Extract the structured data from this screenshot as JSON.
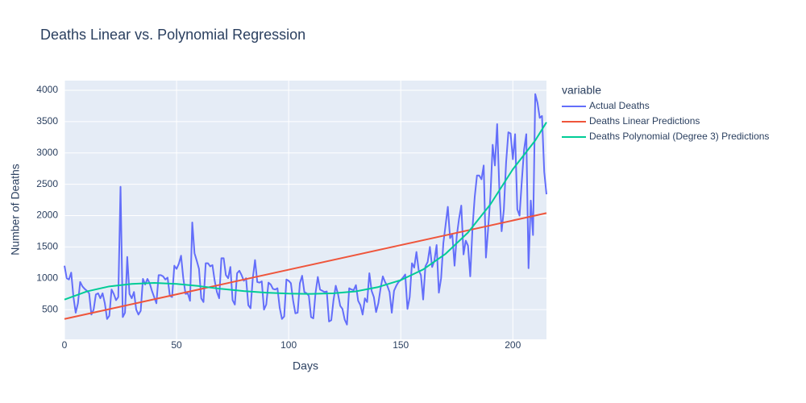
{
  "chart_data": {
    "type": "line",
    "title": "Deaths Linear vs. Polynomial Regression",
    "x_label": "Days",
    "y_label": "Number of Deaths",
    "legend_title": "variable",
    "xlim": [
      0,
      215
    ],
    "xticks": [
      0,
      50,
      100,
      150,
      200
    ],
    "ylim": [
      25,
      4155
    ],
    "yticks": [
      500,
      1000,
      1500,
      2000,
      2500,
      3000,
      3500,
      4000
    ],
    "grid": true,
    "series": [
      {
        "name": "Actual Deaths",
        "color": "#636efa",
        "x": [
          0,
          1,
          2,
          3,
          4,
          5,
          6,
          7,
          8,
          9,
          10,
          11,
          12,
          13,
          14,
          15,
          16,
          17,
          18,
          19,
          20,
          21,
          22,
          23,
          24,
          25,
          26,
          27,
          28,
          29,
          30,
          31,
          32,
          33,
          34,
          35,
          36,
          37,
          38,
          39,
          40,
          41,
          42,
          43,
          44,
          45,
          46,
          47,
          48,
          49,
          50,
          51,
          52,
          53,
          54,
          55,
          56,
          57,
          58,
          59,
          60,
          61,
          62,
          63,
          64,
          65,
          66,
          67,
          68,
          69,
          70,
          71,
          72,
          73,
          74,
          75,
          76,
          77,
          78,
          79,
          80,
          81,
          82,
          83,
          84,
          85,
          86,
          87,
          88,
          89,
          90,
          91,
          92,
          93,
          94,
          95,
          96,
          97,
          98,
          99,
          100,
          101,
          102,
          103,
          104,
          105,
          106,
          107,
          108,
          109,
          110,
          111,
          112,
          113,
          114,
          115,
          116,
          117,
          118,
          119,
          120,
          121,
          122,
          123,
          124,
          125,
          126,
          127,
          128,
          129,
          130,
          131,
          132,
          133,
          134,
          135,
          136,
          137,
          138,
          139,
          140,
          141,
          142,
          143,
          144,
          145,
          146,
          147,
          148,
          149,
          150,
          151,
          152,
          153,
          154,
          155,
          156,
          157,
          158,
          159,
          160,
          161,
          162,
          163,
          164,
          165,
          166,
          167,
          168,
          169,
          170,
          171,
          172,
          173,
          174,
          175,
          176,
          177,
          178,
          179,
          180,
          181,
          182,
          183,
          184,
          185,
          186,
          187,
          188,
          189,
          190,
          191,
          192,
          193,
          194,
          195,
          196,
          197,
          198,
          199,
          200,
          201,
          202,
          203,
          204,
          205,
          206,
          207,
          208,
          209,
          210,
          211,
          212,
          213,
          214,
          215
        ],
        "values": [
          1200,
          1000,
          980,
          1090,
          700,
          450,
          600,
          940,
          870,
          830,
          800,
          760,
          420,
          500,
          740,
          760,
          680,
          760,
          600,
          350,
          400,
          820,
          750,
          650,
          700,
          2460,
          380,
          450,
          1340,
          750,
          680,
          780,
          500,
          420,
          480,
          990,
          900,
          990,
          920,
          800,
          700,
          600,
          1050,
          1050,
          1030,
          980,
          1010,
          720,
          700,
          1200,
          1150,
          1230,
          1360,
          1000,
          750,
          760,
          640,
          1890,
          1400,
          1280,
          1150,
          680,
          620,
          1240,
          1240,
          1190,
          1210,
          960,
          780,
          680,
          1320,
          1320,
          1050,
          1000,
          1180,
          650,
          580,
          1080,
          1120,
          1050,
          960,
          1000,
          570,
          520,
          1000,
          1290,
          940,
          930,
          950,
          500,
          580,
          930,
          900,
          830,
          820,
          840,
          530,
          350,
          390,
          980,
          960,
          920,
          640,
          440,
          450,
          920,
          1040,
          780,
          760,
          720,
          380,
          360,
          770,
          1020,
          820,
          800,
          780,
          790,
          310,
          330,
          650,
          880,
          750,
          560,
          510,
          340,
          260,
          840,
          820,
          810,
          890,
          640,
          570,
          420,
          680,
          620,
          1080,
          800,
          700,
          460,
          600,
          840,
          1030,
          940,
          880,
          780,
          450,
          800,
          880,
          940,
          970,
          1010,
          1060,
          510,
          700,
          1240,
          1170,
          1420,
          1130,
          1050,
          660,
          1190,
          1260,
          1500,
          1180,
          1280,
          1530,
          770,
          1000,
          1560,
          1850,
          2140,
          1640,
          1700,
          1200,
          1680,
          1950,
          2160,
          1380,
          1600,
          1520,
          1030,
          1800,
          2300,
          2640,
          2640,
          2580,
          2800,
          1330,
          1800,
          2310,
          3130,
          2800,
          3460,
          2400,
          1750,
          2100,
          2850,
          3330,
          3310,
          2900,
          3300,
          2100,
          2000,
          2550,
          3050,
          3300,
          1160,
          2240,
          1690,
          3940,
          3800,
          3560,
          3590,
          2700,
          2340
        ]
      },
      {
        "name": "Deaths Linear Predictions",
        "color": "#ef553b",
        "x": [
          0,
          215
        ],
        "values": [
          350,
          2040
        ]
      },
      {
        "name": "Deaths Polynomial (Degree 3) Predictions",
        "color": "#00cc96",
        "x": [
          0,
          10,
          20,
          30,
          40,
          50,
          60,
          70,
          80,
          90,
          100,
          110,
          120,
          130,
          140,
          150,
          160,
          170,
          180,
          190,
          200,
          210,
          215
        ],
        "values": [
          660,
          790,
          870,
          910,
          925,
          910,
          875,
          830,
          795,
          770,
          755,
          750,
          760,
          790,
          860,
          970,
          1140,
          1390,
          1730,
          2180,
          2740,
          3200,
          3490
        ]
      }
    ]
  }
}
